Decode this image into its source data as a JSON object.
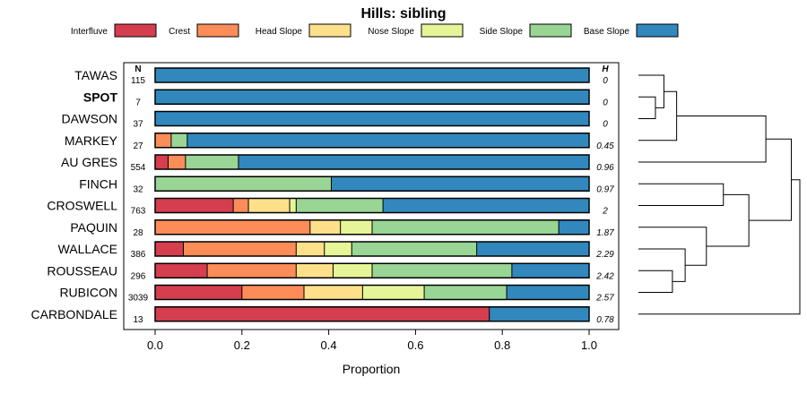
{
  "chart_data": {
    "type": "bar",
    "orientation": "horizontal-stacked",
    "title": "Hills: sibling",
    "xlabel": "Proportion",
    "ylabel": "",
    "xlim": [
      0,
      1
    ],
    "xticks": [
      "0.0",
      "0.2",
      "0.4",
      "0.6",
      "0.8",
      "1.0"
    ],
    "xtick_values": [
      0,
      0.2,
      0.4,
      0.6,
      0.8,
      1.0
    ],
    "col_head_n": "N",
    "col_head_h": "H",
    "legend": {
      "position": "top",
      "entries": [
        {
          "name": "Interfluve",
          "color": "#d53e4f"
        },
        {
          "name": "Crest",
          "color": "#fc8d59"
        },
        {
          "name": "Head Slope",
          "color": "#fee08b"
        },
        {
          "name": "Nose Slope",
          "color": "#e6f598"
        },
        {
          "name": "Side Slope",
          "color": "#99d594"
        },
        {
          "name": "Base Slope",
          "color": "#3288bd"
        }
      ]
    },
    "categories": [
      "TAWAS",
      "SPOT",
      "DAWSON",
      "MARKEY",
      "AU GRES",
      "FINCH",
      "CROSWELL",
      "PAQUIN",
      "WALLACE",
      "ROUSSEAU",
      "RUBICON",
      "CARBONDALE"
    ],
    "highlight": "SPOT",
    "n": [
      "115",
      "7",
      "37",
      "27",
      "554",
      "32",
      "763",
      "28",
      "386",
      "296",
      "3039",
      "13"
    ],
    "h": [
      "0",
      "0",
      "0",
      "0.45",
      "0.96",
      "0.97",
      "2",
      "1.87",
      "2.29",
      "2.42",
      "2.57",
      "0.78"
    ],
    "series": [
      {
        "name": "Interfluve",
        "values": [
          0,
          0,
          0,
          0,
          0.03,
          0,
          0.18,
          0,
          0.065,
          0.12,
          0.2,
          0.77
        ]
      },
      {
        "name": "Crest",
        "values": [
          0,
          0,
          0,
          0.037,
          0.04,
          0,
          0.035,
          0.357,
          0.26,
          0.205,
          0.143,
          0
        ]
      },
      {
        "name": "Head Slope",
        "values": [
          0,
          0,
          0,
          0,
          0,
          0,
          0.095,
          0.07,
          0.065,
          0.085,
          0.135,
          0
        ]
      },
      {
        "name": "Nose Slope",
        "values": [
          0,
          0,
          0,
          0,
          0,
          0,
          0.015,
          0.073,
          0.063,
          0.09,
          0.142,
          0
        ]
      },
      {
        "name": "Side Slope",
        "values": [
          0,
          0,
          0,
          0.037,
          0.122,
          0.406,
          0.2,
          0.43,
          0.288,
          0.322,
          0.19,
          0
        ]
      },
      {
        "name": "Base Slope",
        "values": [
          1,
          1,
          1,
          0.926,
          0.808,
          0.594,
          0.475,
          0.07,
          0.259,
          0.178,
          0.19,
          0.23
        ]
      }
    ],
    "dendrogram": {
      "merges": [
        {
          "a": "SPOT",
          "b": "DAWSON",
          "height": 0.2
        },
        {
          "a": "TAWAS",
          "b": "SPOT+DAWSON",
          "height": 0.3
        },
        {
          "a": "TAWAS+SPOT+DAWSON",
          "b": "MARKEY",
          "height": 0.45
        },
        {
          "a": "ROUSSEAU",
          "b": "RUBICON",
          "height": 0.4
        },
        {
          "a": "WALLACE",
          "b": "ROUSSEAU+RUBICON",
          "height": 0.55
        },
        {
          "a": "PAQUIN",
          "b": "WALLACE+ROUSSEAU+RUBICON",
          "height": 0.8
        },
        {
          "a": "FINCH",
          "b": "CROSWELL",
          "height": 1.0
        },
        {
          "a": "FINCH+CROSWELL",
          "b": "PAQUIN+WALLACE+ROUSSEAU+RUBICON",
          "height": 1.3
        },
        {
          "a": "TAWAS..MARKEY",
          "b": "AU GRES",
          "height": 1.5
        },
        {
          "a": "TAWAS..AU GRES",
          "b": "FINCH..RUBICON",
          "height": 1.8
        },
        {
          "a": "TAWAS..RUBICON",
          "b": "CARBONDALE",
          "height": 1.9
        }
      ]
    }
  }
}
